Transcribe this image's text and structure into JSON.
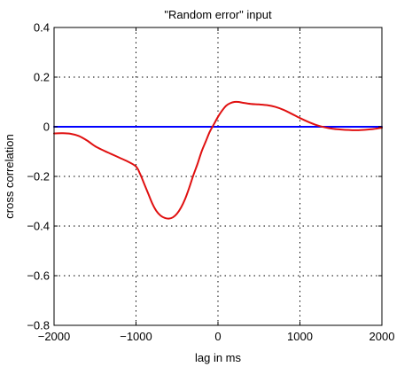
{
  "chart_data": {
    "type": "line",
    "title": "\"Random error\" input",
    "xlabel": "lag in ms",
    "ylabel": "cross correlation",
    "xlim": [
      -2000,
      2000
    ],
    "ylim": [
      -0.8,
      0.4
    ],
    "x_ticks": [
      -2000,
      -1000,
      0,
      1000,
      2000
    ],
    "x_tick_labels": [
      "−2000",
      "−1000",
      "0",
      "1000",
      "2000"
    ],
    "y_ticks": [
      -0.8,
      -0.6,
      -0.4,
      -0.2,
      0,
      0.2,
      0.4
    ],
    "y_tick_labels": [
      "−0.8",
      "−0.6",
      "−0.4",
      "−0.2",
      "0",
      "0.2",
      "0.4"
    ],
    "grid": true,
    "grid_style": "dotted",
    "series": [
      {
        "color": "#0000ff",
        "x": [
          -2000,
          -1000,
          0,
          1000,
          2000
        ],
        "y": [
          0,
          0,
          0,
          0,
          0
        ]
      },
      {
        "color": "#e01010",
        "x": [
          -2000,
          -1900,
          -1800,
          -1700,
          -1600,
          -1500,
          -1400,
          -1300,
          -1200,
          -1100,
          -1000,
          -950,
          -900,
          -850,
          -800,
          -750,
          -700,
          -650,
          -600,
          -550,
          -500,
          -450,
          -400,
          -350,
          -300,
          -250,
          -200,
          -150,
          -100,
          -50,
          0,
          50,
          100,
          150,
          200,
          250,
          300,
          400,
          500,
          600,
          700,
          800,
          900,
          1000,
          1100,
          1200,
          1300,
          1400,
          1500,
          1600,
          1700,
          1800,
          1900,
          2000
        ],
        "y": [
          -0.027,
          -0.026,
          -0.028,
          -0.037,
          -0.055,
          -0.078,
          -0.095,
          -0.11,
          -0.125,
          -0.14,
          -0.16,
          -0.19,
          -0.23,
          -0.27,
          -0.31,
          -0.34,
          -0.358,
          -0.367,
          -0.37,
          -0.365,
          -0.35,
          -0.325,
          -0.29,
          -0.245,
          -0.195,
          -0.15,
          -0.1,
          -0.06,
          -0.02,
          0.01,
          0.04,
          0.065,
          0.085,
          0.095,
          0.1,
          0.1,
          0.097,
          0.092,
          0.09,
          0.087,
          0.08,
          0.068,
          0.052,
          0.035,
          0.02,
          0.007,
          -0.002,
          -0.008,
          -0.011,
          -0.013,
          -0.014,
          -0.012,
          -0.009,
          -0.004
        ]
      }
    ]
  }
}
